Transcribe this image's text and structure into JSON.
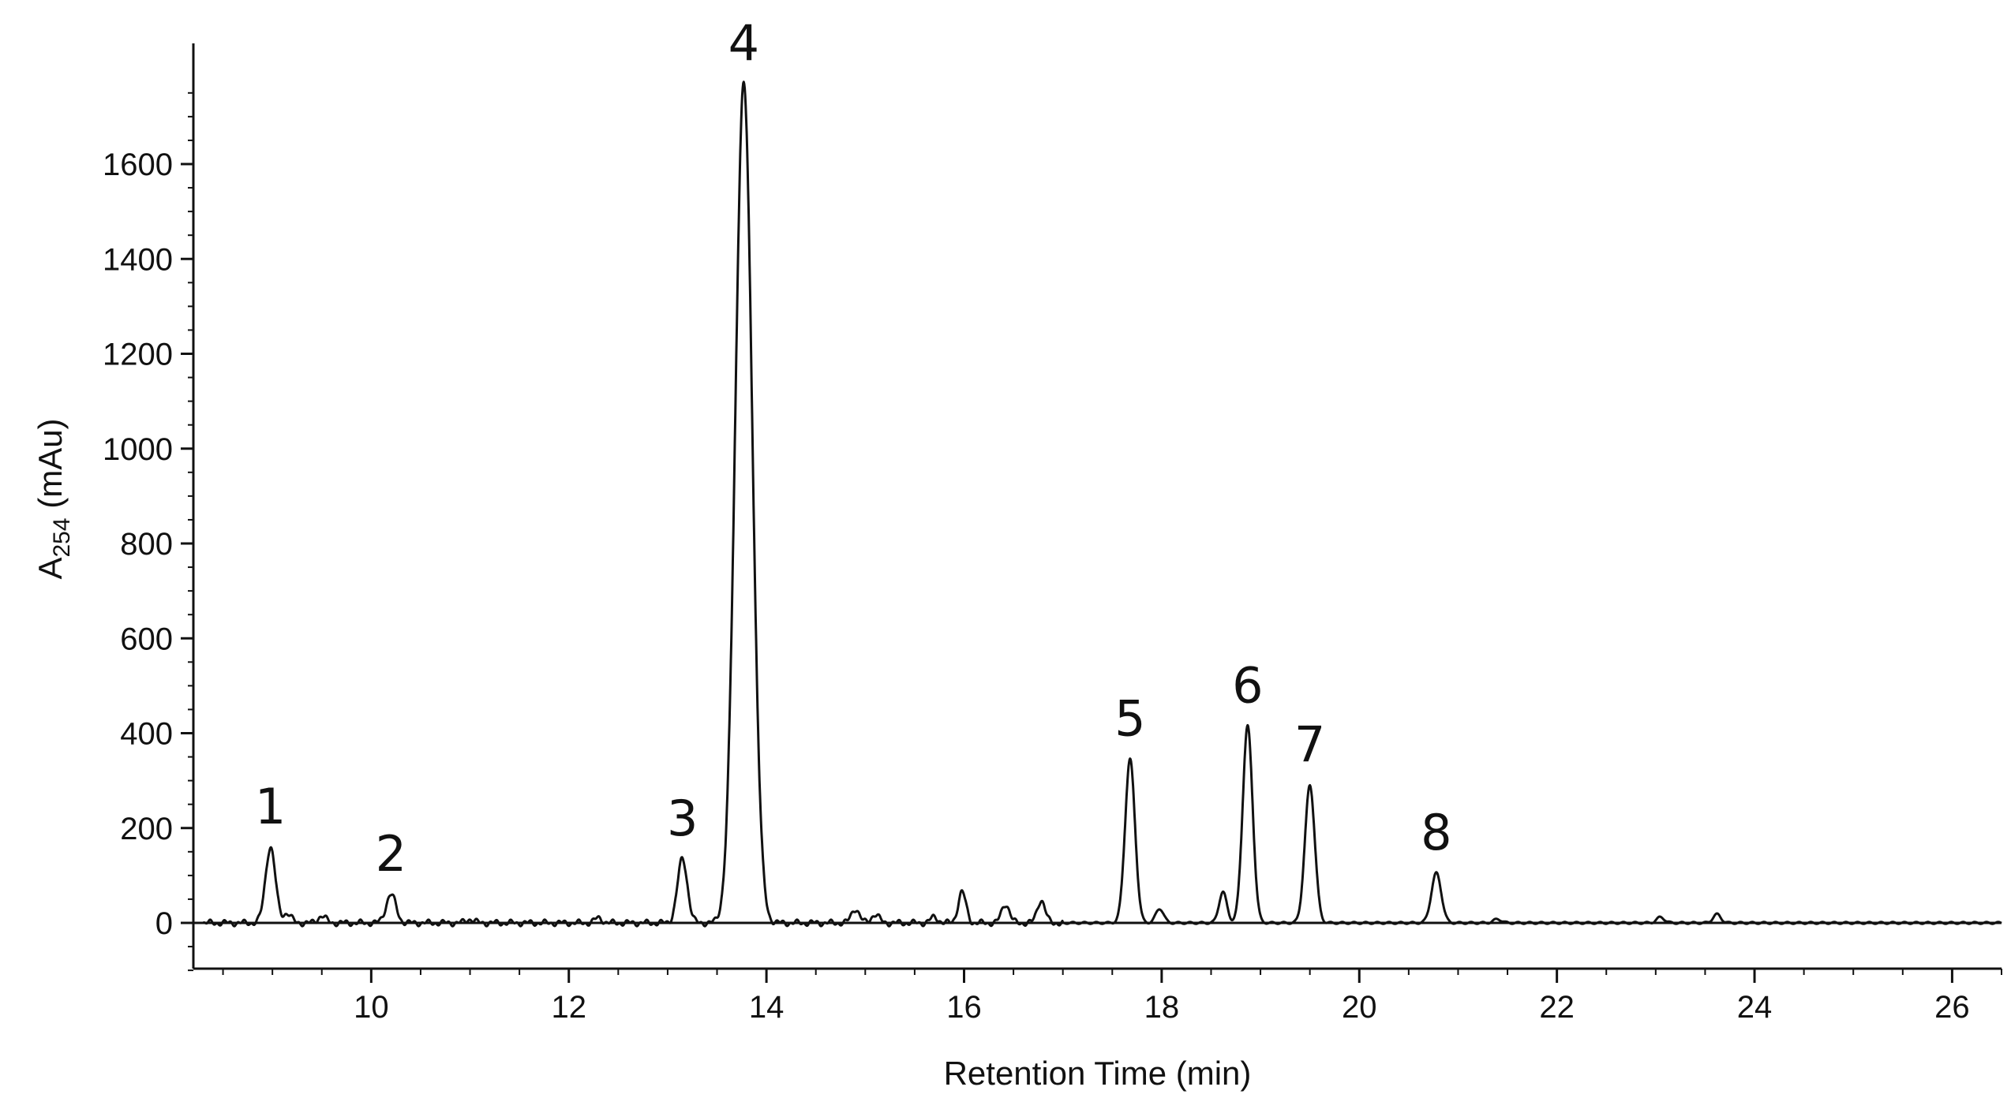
{
  "chart_data": {
    "type": "line",
    "title": "",
    "xlabel": "Retention Time (min)",
    "ylabel": {
      "base": "A",
      "subscript": "254",
      "suffix": " (mAu)"
    },
    "xlim": [
      8.2,
      26.5
    ],
    "ylim": [
      -100,
      1800
    ],
    "x_ticks": [
      10,
      12,
      14,
      16,
      18,
      20,
      22,
      24,
      26
    ],
    "y_ticks": [
      0,
      200,
      400,
      600,
      800,
      1000,
      1200,
      1400,
      1600
    ],
    "grid": false,
    "legend": "none",
    "line_color": "#111111",
    "peaks": [
      {
        "label": "1",
        "rt": 8.98,
        "height": 160
      },
      {
        "label": "2",
        "rt": 10.2,
        "height": 60
      },
      {
        "label": "3",
        "rt": 13.15,
        "height": 135
      },
      {
        "label": "4",
        "rt": 13.77,
        "height": 1770
      },
      {
        "label": "5",
        "rt": 17.68,
        "height": 345
      },
      {
        "label": "6",
        "rt": 18.87,
        "height": 415
      },
      {
        "label": "7",
        "rt": 19.5,
        "height": 290
      },
      {
        "label": "8",
        "rt": 20.78,
        "height": 105
      }
    ],
    "minor_peaks": [
      {
        "rt": 9.15,
        "height": 20
      },
      {
        "rt": 9.5,
        "height": 15
      },
      {
        "rt": 11.0,
        "height": 8
      },
      {
        "rt": 12.3,
        "height": 10
      },
      {
        "rt": 14.9,
        "height": 30
      },
      {
        "rt": 15.1,
        "height": 18
      },
      {
        "rt": 15.7,
        "height": 12
      },
      {
        "rt": 15.98,
        "height": 65
      },
      {
        "rt": 16.42,
        "height": 40
      },
      {
        "rt": 16.78,
        "height": 48
      },
      {
        "rt": 17.98,
        "height": 30
      },
      {
        "rt": 18.62,
        "height": 65
      },
      {
        "rt": 21.4,
        "height": 8
      },
      {
        "rt": 23.05,
        "height": 12
      },
      {
        "rt": 23.62,
        "height": 18
      }
    ]
  }
}
